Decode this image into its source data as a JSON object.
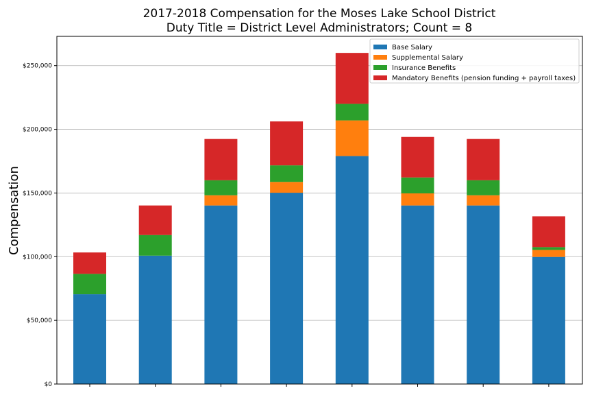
{
  "chart_data": {
    "type": "bar",
    "stacked": true,
    "title": [
      "2017-2018 Compensation for the Moses Lake School District",
      "Duty Title = District Level Administrators; Count = 8"
    ],
    "xlabel": "",
    "ylabel": "Compensation",
    "ylim": [
      0,
      273000
    ],
    "yticks": [
      0,
      50000,
      100000,
      150000,
      200000,
      250000
    ],
    "ytick_labels": [
      "$0",
      "$50,000",
      "$100,000",
      "$150,000",
      "$200,000",
      "$250,000"
    ],
    "grid": "y",
    "legend_position": "top-right",
    "categories": [
      "",
      "",
      "",
      "",
      "",
      "",
      "",
      ""
    ],
    "series": [
      {
        "name": "Base Salary",
        "color": "#1f77b4",
        "values": [
          70500,
          100800,
          140200,
          150200,
          179000,
          140200,
          140200,
          99800
        ]
      },
      {
        "name": "Supplemental Salary",
        "color": "#ff7f0e",
        "values": [
          0,
          0,
          8000,
          8500,
          28000,
          9500,
          8000,
          5500
        ]
      },
      {
        "name": "Insurance Benefits",
        "color": "#2ca02c",
        "values": [
          16000,
          16200,
          11800,
          13000,
          13000,
          12500,
          11800,
          2200
        ]
      },
      {
        "name": "Mandatory Benefits (pension funding + payroll taxes)",
        "color": "#d62728",
        "values": [
          16800,
          23200,
          32400,
          34500,
          40000,
          31800,
          32400,
          24200
        ]
      }
    ]
  }
}
